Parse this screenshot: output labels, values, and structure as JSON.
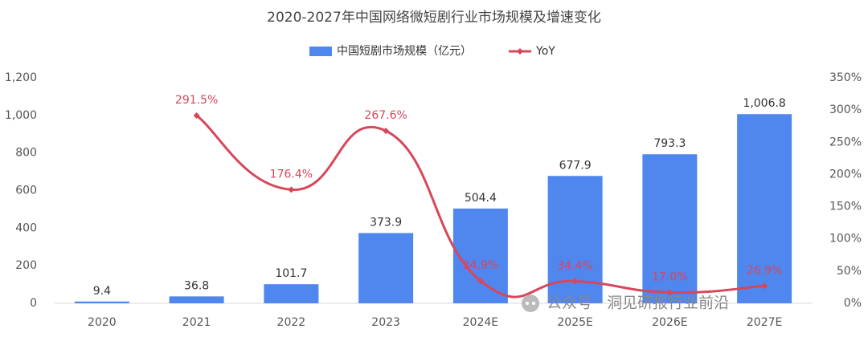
{
  "chart_data": {
    "type": "bar",
    "title": "2020-2027年中国网络微短剧行业市场规模及增速变化",
    "categories": [
      "2020",
      "2021",
      "2022",
      "2023",
      "2024E",
      "2025E",
      "2026E",
      "2027E"
    ],
    "series": [
      {
        "name": "中国短剧市场规模（亿元）",
        "type": "bar",
        "color": "#4f87ee",
        "values": [
          9.4,
          36.8,
          101.7,
          373.9,
          504.4,
          677.9,
          793.3,
          1006.8
        ],
        "value_labels": [
          "9.4",
          "36.8",
          "101.7",
          "373.9",
          "504.4",
          "677.9",
          "793.3",
          "1,006.8"
        ]
      },
      {
        "name": "YoY",
        "type": "line",
        "axis": "y2",
        "color": "#d8465a",
        "values": [
          null,
          291.5,
          176.4,
          267.6,
          34.9,
          34.4,
          17.0,
          26.9
        ],
        "value_labels": [
          null,
          "291.5%",
          "176.4%",
          "267.6%",
          "34.9%",
          "34.4%",
          "17.0%",
          "26.9%"
        ]
      }
    ],
    "ylim": [
      0,
      1200
    ],
    "yticks": [
      0,
      200,
      400,
      600,
      800,
      {
        "value": 1000,
        "label": "1,000"
      },
      {
        "value": 1200,
        "label": "1,200"
      }
    ],
    "y2lim": [
      0,
      350
    ],
    "y2ticks": [
      {
        "value": 0,
        "label": "0%"
      },
      {
        "value": 50,
        "label": "50%"
      },
      {
        "value": 100,
        "label": "100%"
      },
      {
        "value": 150,
        "label": "150%"
      },
      {
        "value": 200,
        "label": "200%"
      },
      {
        "value": 250,
        "label": "250%"
      },
      {
        "value": 300,
        "label": "300%"
      },
      {
        "value": 350,
        "label": "350%"
      }
    ],
    "grid": false,
    "legend": "top",
    "watermark": "公众号 · 洞见研报行业前沿"
  }
}
